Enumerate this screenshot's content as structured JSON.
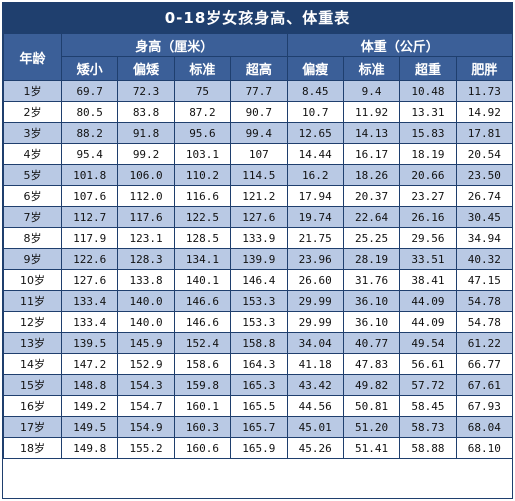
{
  "title": "0-18岁女孩身高、体重表",
  "headers": {
    "age": "年龄",
    "height_group": "身高（厘米）",
    "weight_group": "体重（公斤）",
    "height_cols": [
      "矮小",
      "偏矮",
      "标准",
      "超高"
    ],
    "weight_cols": [
      "偏瘦",
      "标准",
      "超重",
      "肥胖"
    ]
  },
  "rows": [
    {
      "age": "1岁",
      "values": [
        "69.7",
        "72.3",
        "75",
        "77.7",
        "8.45",
        "9.4",
        "10.48",
        "11.73"
      ]
    },
    {
      "age": "2岁",
      "values": [
        "80.5",
        "83.8",
        "87.2",
        "90.7",
        "10.7",
        "11.92",
        "13.31",
        "14.92"
      ]
    },
    {
      "age": "3岁",
      "values": [
        "88.2",
        "91.8",
        "95.6",
        "99.4",
        "12.65",
        "14.13",
        "15.83",
        "17.81"
      ]
    },
    {
      "age": "4岁",
      "values": [
        "95.4",
        "99.2",
        "103.1",
        "107",
        "14.44",
        "16.17",
        "18.19",
        "20.54"
      ]
    },
    {
      "age": "5岁",
      "values": [
        "101.8",
        "106.0",
        "110.2",
        "114.5",
        "16.2",
        "18.26",
        "20.66",
        "23.50"
      ]
    },
    {
      "age": "6岁",
      "values": [
        "107.6",
        "112.0",
        "116.6",
        "121.2",
        "17.94",
        "20.37",
        "23.27",
        "26.74"
      ]
    },
    {
      "age": "7岁",
      "values": [
        "112.7",
        "117.6",
        "122.5",
        "127.6",
        "19.74",
        "22.64",
        "26.16",
        "30.45"
      ]
    },
    {
      "age": "8岁",
      "values": [
        "117.9",
        "123.1",
        "128.5",
        "133.9",
        "21.75",
        "25.25",
        "29.56",
        "34.94"
      ]
    },
    {
      "age": "9岁",
      "values": [
        "122.6",
        "128.3",
        "134.1",
        "139.9",
        "23.96",
        "28.19",
        "33.51",
        "40.32"
      ]
    },
    {
      "age": "10岁",
      "values": [
        "127.6",
        "133.8",
        "140.1",
        "146.4",
        "26.60",
        "31.76",
        "38.41",
        "47.15"
      ]
    },
    {
      "age": "11岁",
      "values": [
        "133.4",
        "140.0",
        "146.6",
        "153.3",
        "29.99",
        "36.10",
        "44.09",
        "54.78"
      ]
    },
    {
      "age": "12岁",
      "values": [
        "133.4",
        "140.0",
        "146.6",
        "153.3",
        "29.99",
        "36.10",
        "44.09",
        "54.78"
      ]
    },
    {
      "age": "13岁",
      "values": [
        "139.5",
        "145.9",
        "152.4",
        "158.8",
        "34.04",
        "40.77",
        "49.54",
        "61.22"
      ]
    },
    {
      "age": "14岁",
      "values": [
        "147.2",
        "152.9",
        "158.6",
        "164.3",
        "41.18",
        "47.83",
        "56.61",
        "66.77"
      ]
    },
    {
      "age": "15岁",
      "values": [
        "148.8",
        "154.3",
        "159.8",
        "165.3",
        "43.42",
        "49.82",
        "57.72",
        "67.61"
      ]
    },
    {
      "age": "16岁",
      "values": [
        "149.2",
        "154.7",
        "160.1",
        "165.5",
        "44.56",
        "50.81",
        "58.45",
        "67.93"
      ]
    },
    {
      "age": "17岁",
      "values": [
        "149.5",
        "154.9",
        "160.3",
        "165.7",
        "45.01",
        "51.20",
        "58.73",
        "68.04"
      ]
    },
    {
      "age": "18岁",
      "values": [
        "149.8",
        "155.2",
        "160.6",
        "165.9",
        "45.26",
        "51.41",
        "58.88",
        "68.10"
      ]
    }
  ],
  "colors": {
    "header_dark": "#1f3f6e",
    "header_mid": "#3b5f98",
    "row_tint": "#b9c9e4",
    "row_plain": "#ffffff"
  }
}
